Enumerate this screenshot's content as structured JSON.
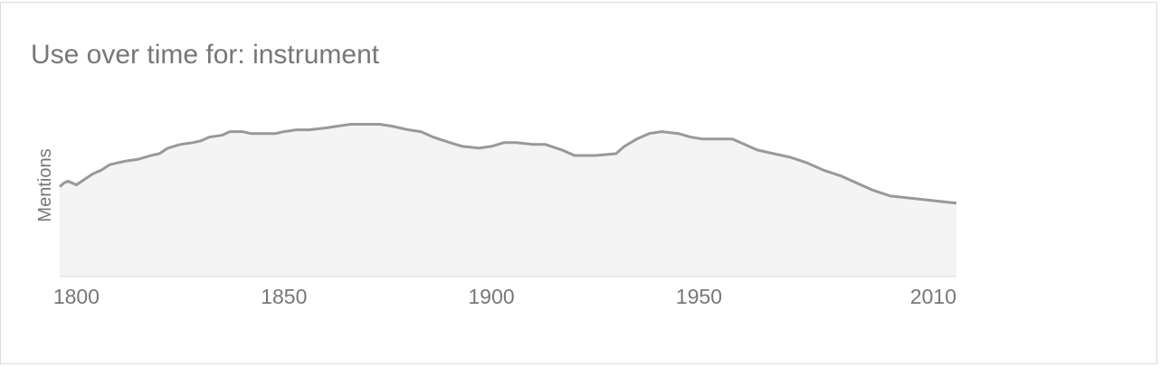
{
  "chart_data": {
    "type": "area",
    "title": "Use over time for: instrument",
    "ylabel": "Mentions",
    "xlabel": "",
    "xlim": [
      1796,
      2012
    ],
    "ylim": [
      0,
      100
    ],
    "x_ticks": [
      1800,
      1850,
      1900,
      1950,
      2010
    ],
    "x_tick_labels": [
      "1800",
      "1850",
      "1900",
      "1950",
      "2010"
    ],
    "grid": false,
    "legend": "none",
    "colors": {
      "line": "#999999",
      "fill": "#f4f4f4",
      "text": "#777777",
      "baseline": "#dddddd"
    },
    "x": [
      1796,
      1797,
      1798,
      1800,
      1802,
      1804,
      1806,
      1808,
      1810,
      1812,
      1815,
      1818,
      1820,
      1822,
      1825,
      1828,
      1830,
      1832,
      1835,
      1837,
      1840,
      1842,
      1845,
      1848,
      1850,
      1853,
      1856,
      1860,
      1863,
      1866,
      1870,
      1873,
      1876,
      1880,
      1883,
      1886,
      1890,
      1893,
      1897,
      1900,
      1903,
      1906,
      1910,
      1913,
      1917,
      1920,
      1925,
      1930,
      1932,
      1935,
      1938,
      1941,
      1945,
      1948,
      1951,
      1955,
      1958,
      1961,
      1964,
      1968,
      1972,
      1976,
      1980,
      1984,
      1988,
      1992,
      1996,
      2000,
      2004,
      2008,
      2012
    ],
    "values": [
      49,
      51,
      52,
      50,
      53,
      56,
      58,
      61,
      62,
      63,
      64,
      66,
      67,
      70,
      72,
      73,
      74,
      76,
      77,
      79,
      79,
      78,
      78,
      78,
      79,
      80,
      80,
      81,
      82,
      83,
      83,
      83,
      82,
      80,
      79,
      76,
      73,
      71,
      70,
      71,
      73,
      73,
      72,
      72,
      69,
      66,
      66,
      67,
      71,
      75,
      78,
      79,
      78,
      76,
      75,
      75,
      75,
      72,
      69,
      67,
      65,
      62,
      58,
      55,
      51,
      47,
      44,
      43,
      42,
      41,
      40
    ]
  }
}
